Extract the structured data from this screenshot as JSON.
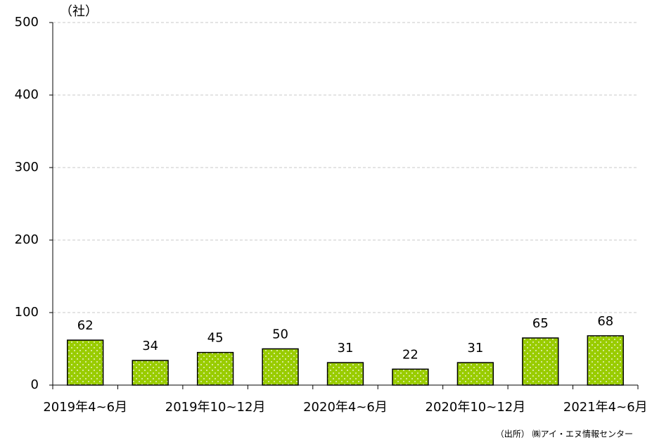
{
  "chart_data": {
    "type": "bar",
    "y_axis_label": "（社）",
    "source": "（出所） ㈱アイ・エヌ情報センター",
    "categories": [
      "2019年4~6月",
      null,
      "2019年10~12月",
      null,
      "2020年4~6月",
      null,
      "2020年10~12月",
      null,
      "2021年4~6月"
    ],
    "values": [
      62,
      34,
      45,
      50,
      31,
      22,
      31,
      65,
      68
    ],
    "color": "#99cc00",
    "ylim": [
      0,
      500
    ],
    "yticks": [
      0,
      100,
      200,
      300,
      400,
      500
    ],
    "grid": true
  }
}
